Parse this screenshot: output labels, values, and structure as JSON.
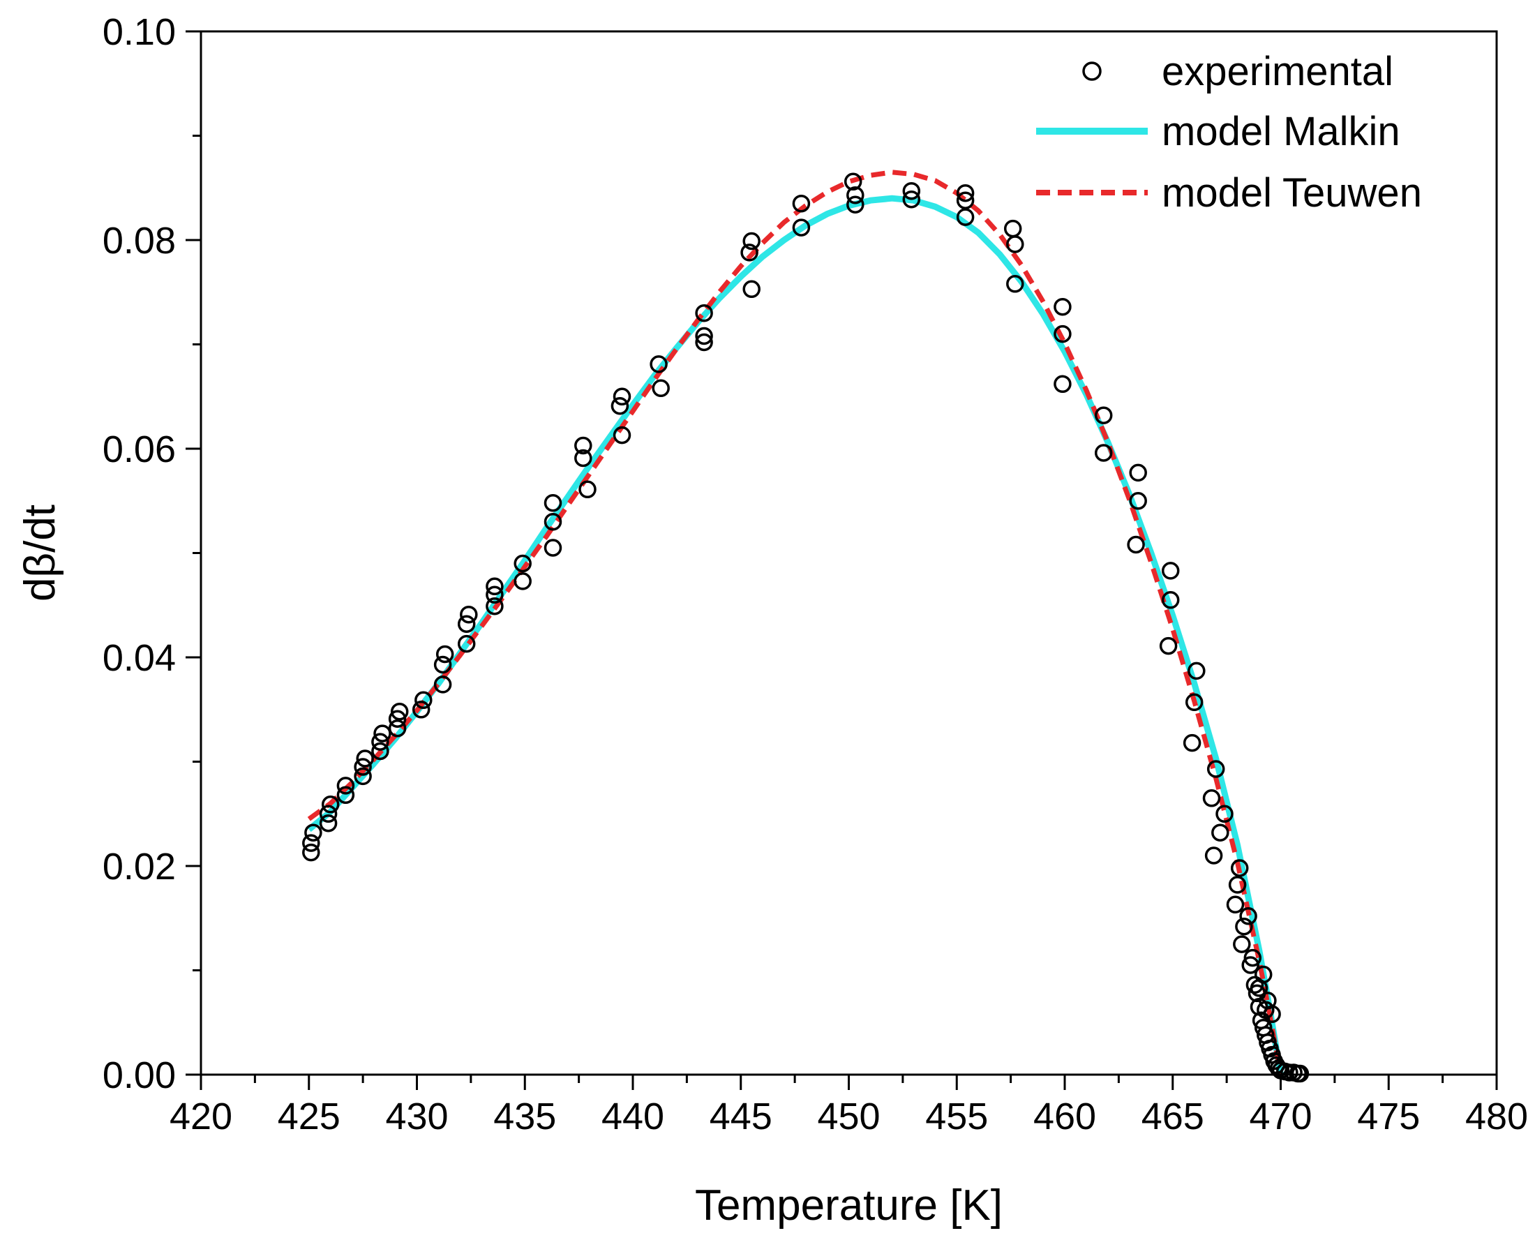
{
  "chart_data": {
    "type": "scatter",
    "title": "",
    "xlabel": "Temperature [K]",
    "ylabel": "dβ/dt",
    "xlim": [
      420,
      480
    ],
    "ylim": [
      0,
      0.1
    ],
    "xticks": [
      420,
      425,
      430,
      435,
      440,
      445,
      450,
      455,
      460,
      465,
      470,
      475,
      480
    ],
    "xtick_labels": [
      "420",
      "425",
      "430",
      "435",
      "440",
      "445",
      "450",
      "455",
      "460",
      "465",
      "470",
      "475",
      "480"
    ],
    "yticks": [
      0,
      0.02,
      0.04,
      0.06,
      0.08,
      0.1
    ],
    "ytick_labels": [
      "0.00",
      "0.02",
      "0.04",
      "0.06",
      "0.08",
      "0.10"
    ],
    "grid": false,
    "legend_position": "top-right",
    "series": [
      {
        "name": "experimental",
        "style": "open-circle",
        "color": "#000000",
        "points": [
          [
            425.1,
            0.0213
          ],
          [
            425.1,
            0.0222
          ],
          [
            425.2,
            0.0232
          ],
          [
            425.9,
            0.0241
          ],
          [
            425.9,
            0.025
          ],
          [
            426.0,
            0.0259
          ],
          [
            426.7,
            0.0268
          ],
          [
            426.7,
            0.0277
          ],
          [
            427.5,
            0.0286
          ],
          [
            427.5,
            0.0295
          ],
          [
            427.6,
            0.0303
          ],
          [
            428.3,
            0.031
          ],
          [
            428.3,
            0.0319
          ],
          [
            428.4,
            0.0327
          ],
          [
            429.1,
            0.0332
          ],
          [
            429.1,
            0.0341
          ],
          [
            429.2,
            0.0348
          ],
          [
            430.2,
            0.035
          ],
          [
            430.3,
            0.0359
          ],
          [
            431.2,
            0.0374
          ],
          [
            431.2,
            0.0393
          ],
          [
            431.3,
            0.0403
          ],
          [
            432.3,
            0.0413
          ],
          [
            432.3,
            0.0432
          ],
          [
            432.4,
            0.0441
          ],
          [
            433.6,
            0.0449
          ],
          [
            433.6,
            0.046
          ],
          [
            433.6,
            0.0468
          ],
          [
            434.9,
            0.0473
          ],
          [
            434.9,
            0.049
          ],
          [
            436.3,
            0.0505
          ],
          [
            436.3,
            0.053
          ],
          [
            436.3,
            0.0548
          ],
          [
            437.9,
            0.0561
          ],
          [
            437.7,
            0.0591
          ],
          [
            437.7,
            0.0603
          ],
          [
            439.5,
            0.0613
          ],
          [
            439.4,
            0.0641
          ],
          [
            439.5,
            0.065
          ],
          [
            441.3,
            0.0658
          ],
          [
            441.2,
            0.0681
          ],
          [
            443.3,
            0.0702
          ],
          [
            443.3,
            0.0708
          ],
          [
            443.3,
            0.073
          ],
          [
            445.5,
            0.0753
          ],
          [
            445.4,
            0.0788
          ],
          [
            445.5,
            0.0799
          ],
          [
            447.8,
            0.0812
          ],
          [
            447.8,
            0.0835
          ],
          [
            450.3,
            0.0834
          ],
          [
            450.3,
            0.0843
          ],
          [
            450.2,
            0.0856
          ],
          [
            452.9,
            0.0839
          ],
          [
            452.9,
            0.0847
          ],
          [
            455.4,
            0.0822
          ],
          [
            455.4,
            0.0838
          ],
          [
            455.4,
            0.0845
          ],
          [
            457.7,
            0.0758
          ],
          [
            457.7,
            0.0796
          ],
          [
            457.6,
            0.0811
          ],
          [
            459.9,
            0.0662
          ],
          [
            459.9,
            0.071
          ],
          [
            459.9,
            0.0736
          ],
          [
            461.8,
            0.0596
          ],
          [
            461.8,
            0.0632
          ],
          [
            463.3,
            0.0508
          ],
          [
            463.4,
            0.055
          ],
          [
            463.4,
            0.0577
          ],
          [
            464.8,
            0.0411
          ],
          [
            464.9,
            0.0455
          ],
          [
            464.9,
            0.0483
          ],
          [
            465.9,
            0.0318
          ],
          [
            466.0,
            0.0357
          ],
          [
            466.1,
            0.0387
          ],
          [
            466.9,
            0.021
          ],
          [
            466.8,
            0.0265
          ],
          [
            467.0,
            0.0293
          ],
          [
            467.2,
            0.0232
          ],
          [
            467.4,
            0.025
          ],
          [
            467.9,
            0.0163
          ],
          [
            468.0,
            0.0182
          ],
          [
            468.1,
            0.0198
          ],
          [
            468.2,
            0.0125
          ],
          [
            468.3,
            0.0142
          ],
          [
            468.5,
            0.0152
          ],
          [
            468.6,
            0.0105
          ],
          [
            468.7,
            0.0112
          ],
          [
            468.8,
            0.0086
          ],
          [
            468.9,
            0.0078
          ],
          [
            469.0,
            0.0065
          ],
          [
            469.1,
            0.0052
          ],
          [
            469.2,
            0.0045
          ],
          [
            469.3,
            0.0038
          ],
          [
            469.4,
            0.0031
          ],
          [
            469.5,
            0.0025
          ],
          [
            469.6,
            0.0019
          ],
          [
            469.7,
            0.0013
          ],
          [
            469.8,
            0.0009
          ],
          [
            469.9,
            0.0006
          ],
          [
            470.0,
            0.0004
          ],
          [
            470.2,
            0.0003
          ],
          [
            470.4,
            0.0002
          ],
          [
            470.6,
            0.0002
          ],
          [
            470.8,
            0.0001
          ],
          [
            470.9,
            0.0001
          ],
          [
            469.3,
            0.0062
          ],
          [
            469.2,
            0.0096
          ],
          [
            469.6,
            0.0058
          ],
          [
            469.0,
            0.0083
          ],
          [
            469.4,
            0.0071
          ]
        ]
      },
      {
        "name": "model Malkin",
        "style": "solid",
        "color": "#2ee6e6",
        "points": [
          [
            425.0,
            0.0235
          ],
          [
            426.0,
            0.0252
          ],
          [
            427.0,
            0.0275
          ],
          [
            428.0,
            0.0298
          ],
          [
            429.0,
            0.0322
          ],
          [
            430.0,
            0.0348
          ],
          [
            431.0,
            0.0375
          ],
          [
            432.0,
            0.0404
          ],
          [
            433.0,
            0.0433
          ],
          [
            434.0,
            0.0463
          ],
          [
            435.0,
            0.0493
          ],
          [
            436.0,
            0.0524
          ],
          [
            437.0,
            0.0554
          ],
          [
            438.0,
            0.0584
          ],
          [
            439.0,
            0.0613
          ],
          [
            440.0,
            0.0642
          ],
          [
            441.0,
            0.067
          ],
          [
            442.0,
            0.0696
          ],
          [
            443.0,
            0.0721
          ],
          [
            444.0,
            0.0744
          ],
          [
            445.0,
            0.0765
          ],
          [
            446.0,
            0.0784
          ],
          [
            447.0,
            0.08
          ],
          [
            448.0,
            0.0814
          ],
          [
            449.0,
            0.0825
          ],
          [
            450.0,
            0.0833
          ],
          [
            451.0,
            0.0838
          ],
          [
            452.0,
            0.084
          ],
          [
            453.0,
            0.0838
          ],
          [
            454.0,
            0.0832
          ],
          [
            455.0,
            0.0822
          ],
          [
            456.0,
            0.0807
          ],
          [
            457.0,
            0.0786
          ],
          [
            458.0,
            0.076
          ],
          [
            459.0,
            0.0729
          ],
          [
            460.0,
            0.0693
          ],
          [
            461.0,
            0.0652
          ],
          [
            462.0,
            0.0606
          ],
          [
            463.0,
            0.0556
          ],
          [
            464.0,
            0.05
          ],
          [
            465.0,
            0.044
          ],
          [
            466.0,
            0.0375
          ],
          [
            467.0,
            0.0303
          ],
          [
            468.0,
            0.022
          ],
          [
            469.0,
            0.012
          ],
          [
            469.5,
            0.0062
          ],
          [
            470.0,
            0.0
          ]
        ]
      },
      {
        "name": "model Teuwen",
        "style": "dashed",
        "color": "#e8292b",
        "points": [
          [
            425.0,
            0.0245
          ],
          [
            426.0,
            0.026
          ],
          [
            427.0,
            0.028
          ],
          [
            428.0,
            0.0302
          ],
          [
            429.0,
            0.0325
          ],
          [
            430.0,
            0.0349
          ],
          [
            431.0,
            0.0375
          ],
          [
            432.0,
            0.0402
          ],
          [
            433.0,
            0.043
          ],
          [
            434.0,
            0.0458
          ],
          [
            435.0,
            0.0487
          ],
          [
            436.0,
            0.0516
          ],
          [
            437.0,
            0.0546
          ],
          [
            438.0,
            0.0576
          ],
          [
            439.0,
            0.0606
          ],
          [
            440.0,
            0.0636
          ],
          [
            441.0,
            0.0666
          ],
          [
            442.0,
            0.0695
          ],
          [
            443.0,
            0.0723
          ],
          [
            444.0,
            0.075
          ],
          [
            445.0,
            0.0775
          ],
          [
            446.0,
            0.0797
          ],
          [
            447.0,
            0.0817
          ],
          [
            448.0,
            0.0833
          ],
          [
            449.0,
            0.0846
          ],
          [
            450.0,
            0.0856
          ],
          [
            451.0,
            0.0862
          ],
          [
            452.0,
            0.0865
          ],
          [
            453.0,
            0.0863
          ],
          [
            454.0,
            0.0857
          ],
          [
            455.0,
            0.0845
          ],
          [
            456.0,
            0.0828
          ],
          [
            457.0,
            0.0805
          ],
          [
            458.0,
            0.0776
          ],
          [
            459.0,
            0.0741
          ],
          [
            460.0,
            0.0701
          ],
          [
            461.0,
            0.0656
          ],
          [
            462.0,
            0.0606
          ],
          [
            463.0,
            0.0551
          ],
          [
            464.0,
            0.0491
          ],
          [
            465.0,
            0.0427
          ],
          [
            466.0,
            0.0358
          ],
          [
            467.0,
            0.0284
          ],
          [
            468.0,
            0.0203
          ],
          [
            469.0,
            0.011
          ],
          [
            469.5,
            0.0057
          ],
          [
            470.0,
            0.0
          ]
        ]
      }
    ]
  }
}
